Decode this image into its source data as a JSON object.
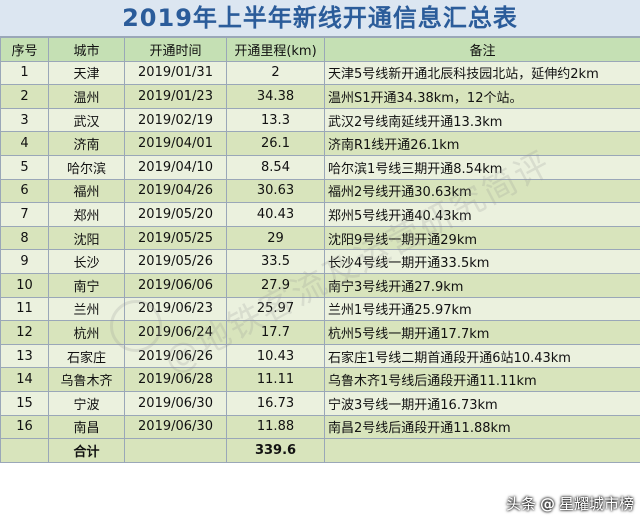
{
  "title": "2019年上半年新线开通信息汇总表",
  "headers": [
    "序号",
    "城市",
    "开通时间",
    "开通里程(km)",
    "备注"
  ],
  "rows": [
    [
      "1",
      "天津",
      "2019/01/31",
      "2",
      "天津5号线新开通北辰科技园北站，延伸约2km"
    ],
    [
      "2",
      "温州",
      "2019/01/23",
      "34.38",
      "温州S1开通34.38km，12个站。"
    ],
    [
      "3",
      "武汉",
      "2019/02/19",
      "13.3",
      "武汉2号线南延线开通13.3km"
    ],
    [
      "4",
      "济南",
      "2019/04/01",
      "26.1",
      "济南R1线开通26.1km"
    ],
    [
      "5",
      "哈尔滨",
      "2019/04/10",
      "8.54",
      "哈尔滨1号线三期开通8.54km"
    ],
    [
      "6",
      "福州",
      "2019/04/26",
      "30.63",
      "福州2号线开通30.63km"
    ],
    [
      "7",
      "郑州",
      "2019/05/20",
      "40.43",
      "郑州5号线开通40.43km"
    ],
    [
      "8",
      "沈阳",
      "2019/05/25",
      "29",
      "沈阳9号线一期开通29km"
    ],
    [
      "9",
      "长沙",
      "2019/05/26",
      "33.5",
      "长沙4号线一期开通33.5km"
    ],
    [
      "10",
      "南宁",
      "2019/06/06",
      "27.9",
      "南宁3号线开通27.9km"
    ],
    [
      "11",
      "兰州",
      "2019/06/23",
      "25.97",
      "兰州1号线开通25.97km"
    ],
    [
      "12",
      "杭州",
      "2019/06/24",
      "17.7",
      "杭州5号线一期开通17.7km"
    ],
    [
      "13",
      "石家庄",
      "2019/06/26",
      "10.43",
      "石家庄1号线二期首通段开通6站10.43km"
    ],
    [
      "14",
      "乌鲁木齐",
      "2019/06/28",
      "11.11",
      "乌鲁木齐1号线后通段开通11.11km"
    ],
    [
      "15",
      "宁波",
      "2019/06/30",
      "16.73",
      "宁波3号线一期开通16.73km"
    ],
    [
      "16",
      "南昌",
      "2019/06/30",
      "11.88",
      "南昌2号线后通段开通11.88km"
    ]
  ],
  "total": {
    "label": "合计",
    "value": "339.6"
  },
  "watermark": "@地铁客流及运营研究简评",
  "credit": {
    "prefix": "头条",
    "at": "@",
    "account": "星耀城市榜"
  },
  "colors": {
    "title": "#2b5c9a",
    "header_bg": "#c5e0b4",
    "row_light": "#ebf1de",
    "row_dark": "#d8e4bc",
    "border": "#9aa7b8"
  }
}
